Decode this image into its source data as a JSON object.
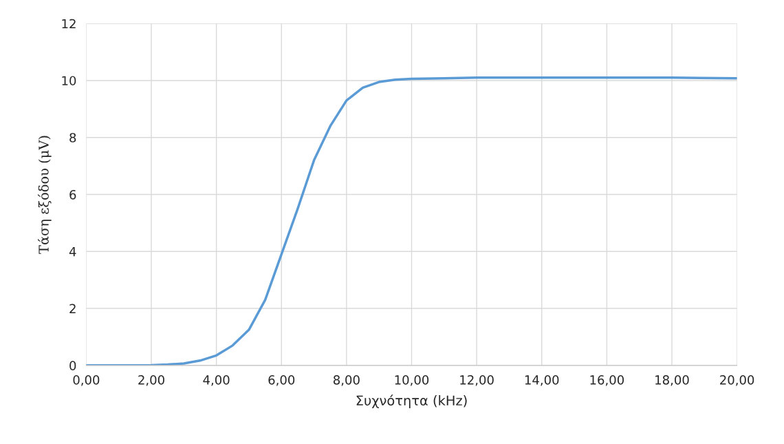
{
  "chart_data": {
    "type": "line",
    "xlabel": "Συχνότητα (kHz)",
    "ylabel": "Τάση εξόδου (μV)",
    "x": [
      0,
      1,
      2,
      2.5,
      3,
      3.5,
      4,
      4.5,
      5,
      5.5,
      6,
      6.5,
      7,
      7.5,
      8,
      8.5,
      9,
      9.5,
      10,
      11,
      12,
      14,
      16,
      18,
      20
    ],
    "series": [
      {
        "color": "#5b9bd5",
        "values": [
          0,
          0,
          0.01,
          0.03,
          0.07,
          0.17,
          0.35,
          0.7,
          1.25,
          2.3,
          3.9,
          5.5,
          7.2,
          8.4,
          9.3,
          9.75,
          9.95,
          10.03,
          10.06,
          10.08,
          10.1,
          10.1,
          10.1,
          10.1,
          10.08
        ]
      }
    ],
    "xlim": [
      0,
      20
    ],
    "ylim": [
      0,
      12
    ],
    "xticks": [
      {
        "value": 0,
        "label": "0,00"
      },
      {
        "value": 2,
        "label": "2,00"
      },
      {
        "value": 4,
        "label": "4,00"
      },
      {
        "value": 6,
        "label": "6,00"
      },
      {
        "value": 8,
        "label": "8,00"
      },
      {
        "value": 10,
        "label": "10,00"
      },
      {
        "value": 12,
        "label": "12,00"
      },
      {
        "value": 14,
        "label": "14,00"
      },
      {
        "value": 16,
        "label": "16,00"
      },
      {
        "value": 18,
        "label": "18,00"
      },
      {
        "value": 20,
        "label": "20,00"
      }
    ],
    "yticks": [
      0,
      2,
      4,
      6,
      8,
      10,
      12
    ],
    "grid": true,
    "marker": "none",
    "line_style": "solid",
    "legend": false
  }
}
